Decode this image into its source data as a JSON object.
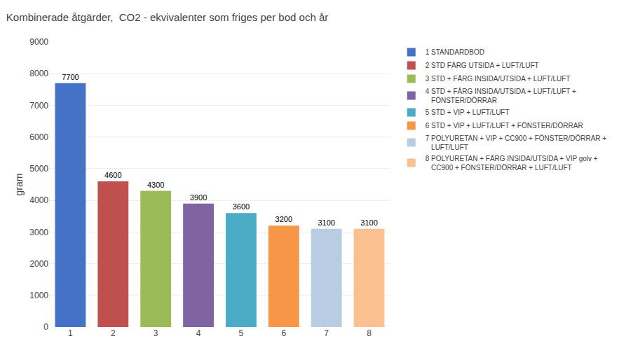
{
  "chart_data": {
    "type": "bar",
    "title": "Kombinerade åtgärder,  CO2 - ekvivalenter som friges per bod och år",
    "categories": [
      "1",
      "2",
      "3",
      "4",
      "5",
      "6",
      "7",
      "8"
    ],
    "series": [
      {
        "name": "1 STANDARDBOD",
        "color": "#4472C4",
        "values": [
          7700,
          null,
          null,
          null,
          null,
          null,
          null,
          null
        ]
      },
      {
        "name": "2 STD FÄRG UTSIDA + LUFT/LUFT",
        "color": "#C0504D",
        "values": [
          null,
          4600,
          null,
          null,
          null,
          null,
          null,
          null
        ]
      },
      {
        "name": "3 STD + FÄRG INSIDA/UTSIDA + LUFT/LUFT",
        "color": "#9BBB59",
        "values": [
          null,
          null,
          4300,
          null,
          null,
          null,
          null,
          null
        ]
      },
      {
        "name": "4 STD + FÄRG INSIDA/UTSIDA + LUFT/LUFT +\n   FÖNSTER/DÖRRAR",
        "color": "#8064A2",
        "values": [
          null,
          null,
          null,
          3900,
          null,
          null,
          null,
          null
        ]
      },
      {
        "name": "5 STD + VIP + LUFT/LUFT",
        "color": "#4BACC6",
        "values": [
          null,
          null,
          null,
          null,
          3600,
          null,
          null,
          null
        ]
      },
      {
        "name": "6 STD + VIP + LUFT/LUFT + FÖNSTER/DÖRRAR",
        "color": "#F79646",
        "values": [
          null,
          null,
          null,
          null,
          null,
          3200,
          null,
          null
        ]
      },
      {
        "name": "7 POLYURETAN + VIP + CC900 + FÖNSTER/DÖRRAR +\n   LUFT/LUFT",
        "color": "#B8CCE4",
        "values": [
          null,
          null,
          null,
          null,
          null,
          null,
          3100,
          null
        ]
      },
      {
        "name": "8 POLYURETAN + FÄRG INSIDA/UTSIDA + VIP golv +\n   CC900 + FÖNSTER/DÖRRAR + LUFT/LUFT",
        "color": "#FAC090",
        "values": [
          null,
          null,
          null,
          null,
          null,
          null,
          null,
          3100
        ]
      }
    ],
    "ylabel": "gram",
    "ylim": [
      0,
      9000
    ],
    "yticks": [
      0,
      1000,
      2000,
      3000,
      4000,
      5000,
      6000,
      7000,
      8000,
      9000
    ],
    "grid": true,
    "data_labels": true,
    "legend": "right"
  }
}
